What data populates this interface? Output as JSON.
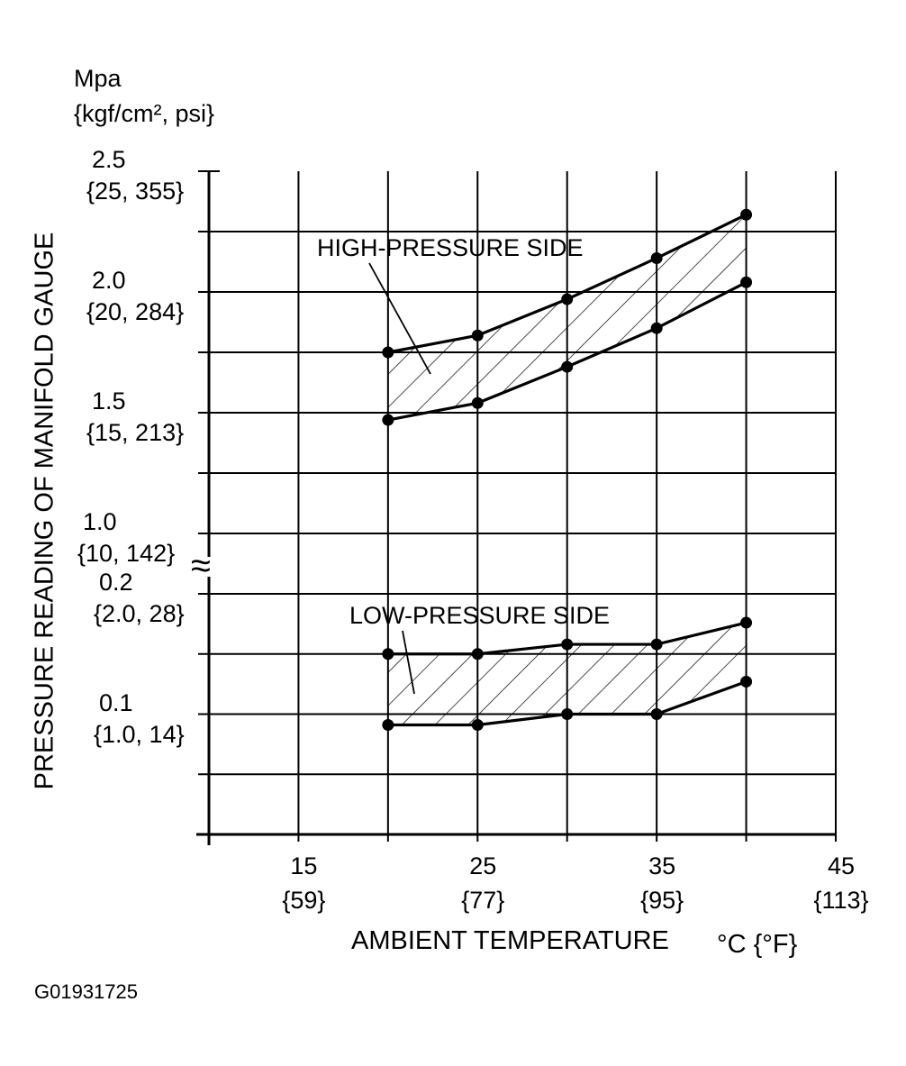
{
  "chart_data": {
    "type": "area",
    "y_unit_line1": "Mpa",
    "y_unit_line2": "{kgf/cm², psi}",
    "ylabel": "PRESSURE READING OF MANIFOLD GAUGE",
    "xlabel": "AMBIENT TEMPERATURE",
    "x_unit": "°C {°F}",
    "xlim": [
      10,
      45
    ],
    "axis_break": "≈",
    "x_ticks": [
      {
        "value": 15,
        "c": "15",
        "f": "{59}"
      },
      {
        "value": 25,
        "c": "25",
        "f": "{77}"
      },
      {
        "value": 35,
        "c": "35",
        "f": "{95}"
      },
      {
        "value": 45,
        "c": "45",
        "f": "{113}"
      }
    ],
    "x_gridlines": [
      15,
      20,
      25,
      30,
      35,
      40,
      45
    ],
    "upper_panel": {
      "ylim": [
        1.0,
        2.5
      ],
      "gridlines": [
        1.0,
        1.25,
        1.5,
        1.75,
        2.0,
        2.25
      ],
      "ticks": [
        {
          "value": 2.5,
          "mpa": "2.5",
          "sub": "{25, 355}"
        },
        {
          "value": 2.0,
          "mpa": "2.0",
          "sub": "{20, 284}"
        },
        {
          "value": 1.5,
          "mpa": "1.5",
          "sub": "{15, 213}"
        },
        {
          "value": 1.0,
          "mpa": "1.0",
          "sub": "{10, 142}"
        }
      ]
    },
    "lower_panel": {
      "ylim": [
        0.0,
        0.2
      ],
      "gridlines": [
        0.05,
        0.1,
        0.15,
        0.2
      ],
      "ticks": [
        {
          "value": 0.2,
          "mpa": "0.2",
          "sub": "{2.0, 28}"
        },
        {
          "value": 0.1,
          "mpa": "0.1",
          "sub": "{1.0, 14}"
        }
      ]
    },
    "regions": [
      {
        "name": "HIGH-PRESSURE SIDE",
        "panel": "upper",
        "x": [
          20,
          25,
          30,
          35,
          40
        ],
        "upper": [
          1.75,
          1.82,
          1.97,
          2.14,
          2.32
        ],
        "lower": [
          1.47,
          1.54,
          1.69,
          1.85,
          2.04
        ]
      },
      {
        "name": "LOW-PRESSURE SIDE",
        "panel": "lower",
        "x": [
          20,
          25,
          30,
          35,
          40
        ],
        "upper": [
          0.15,
          0.15,
          0.158,
          0.158,
          0.176
        ],
        "lower": [
          0.091,
          0.091,
          0.1,
          0.1,
          0.127
        ]
      }
    ],
    "grid": true
  },
  "figure_id": "G01931725"
}
